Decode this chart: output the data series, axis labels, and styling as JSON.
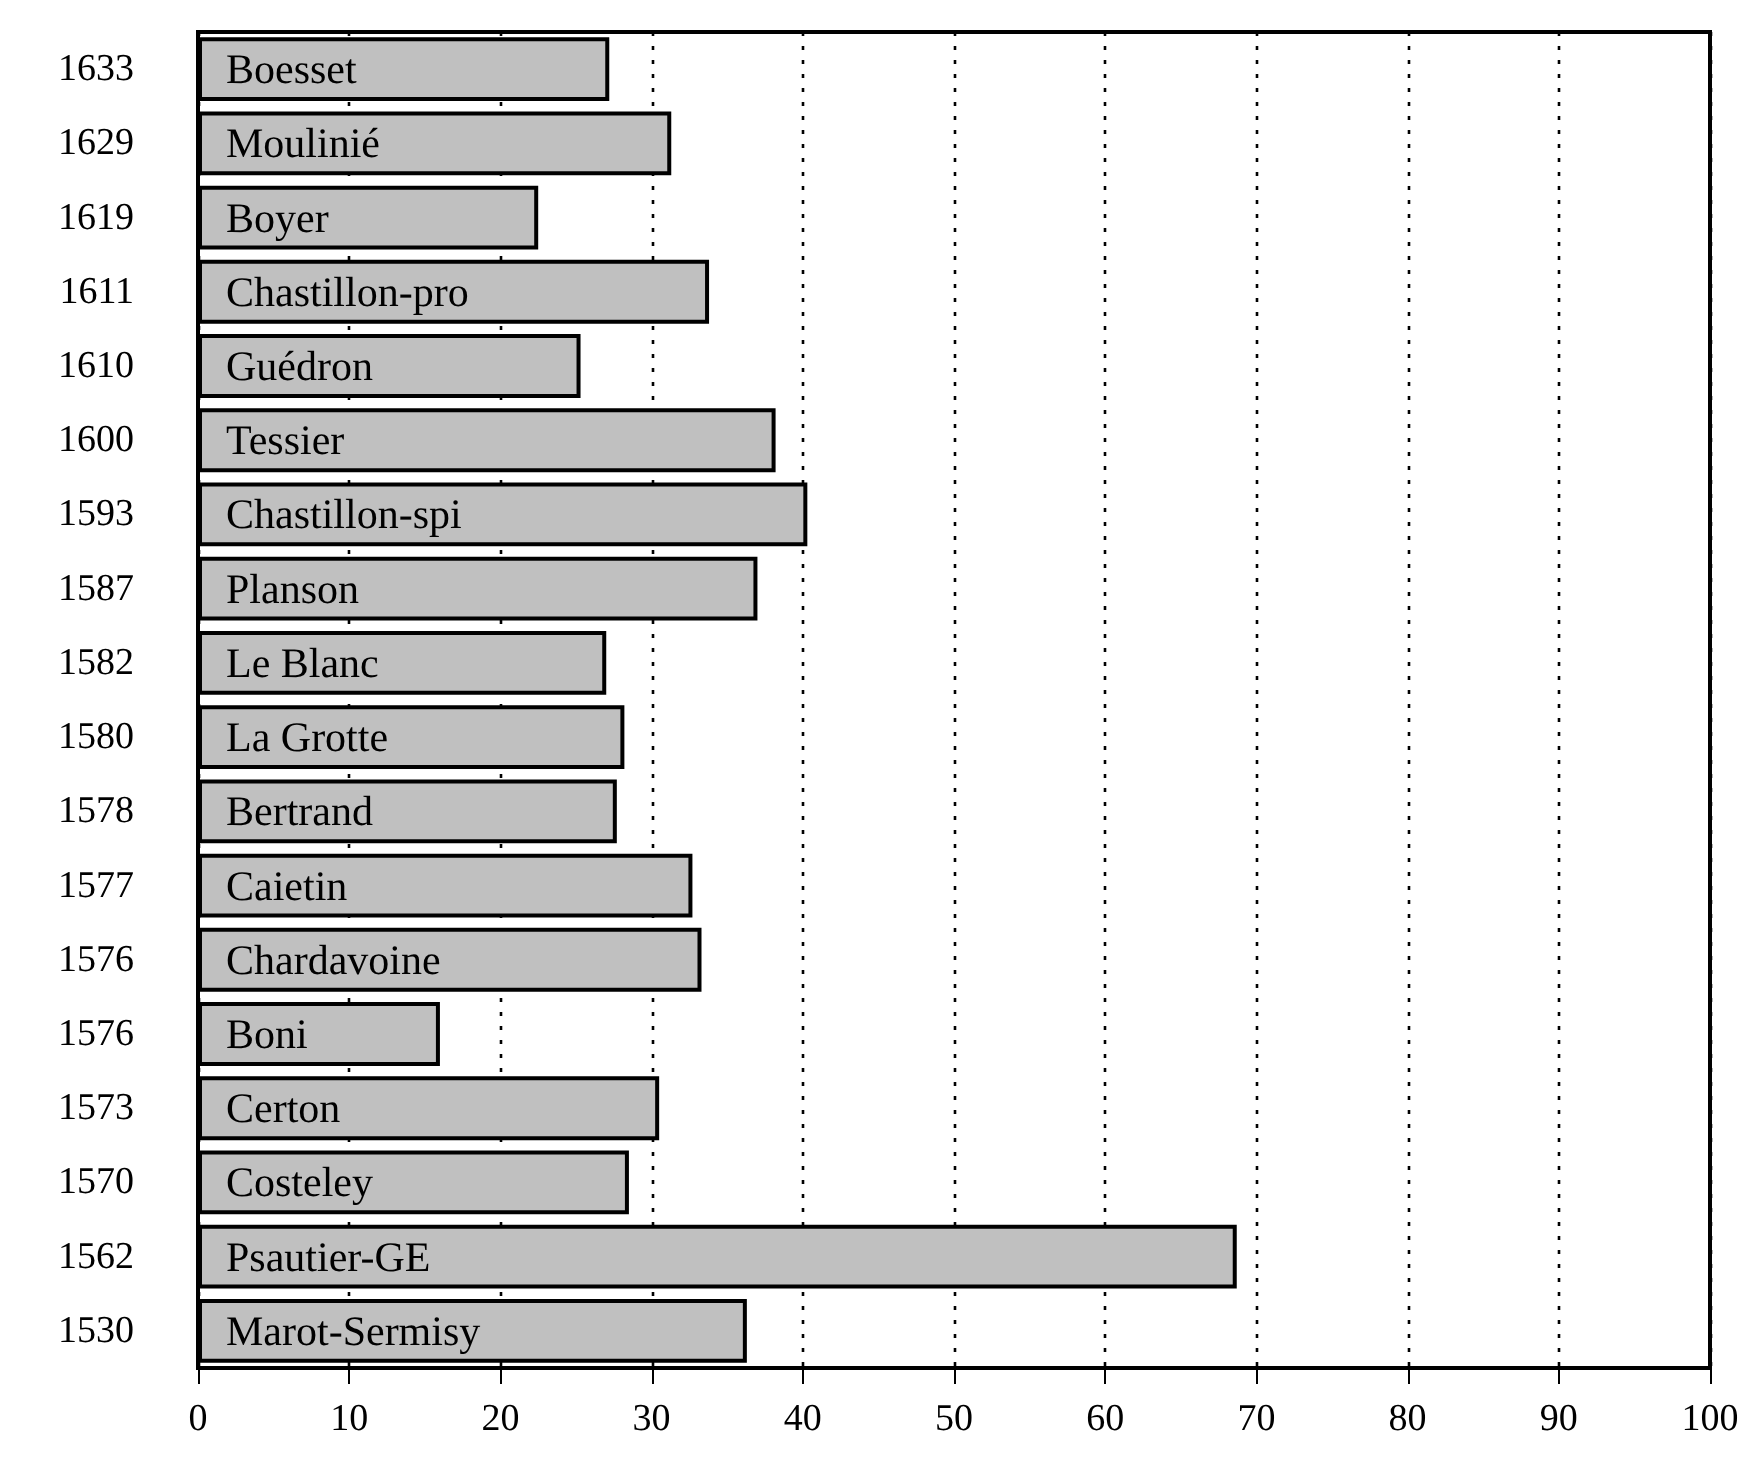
{
  "chart_data": {
    "type": "bar",
    "orientation": "horizontal",
    "categories": [
      "1633",
      "1629",
      "1619",
      "1611",
      "1610",
      "1600",
      "1593",
      "1587",
      "1582",
      "1580",
      "1578",
      "1577",
      "1576",
      "1576",
      "1573",
      "1570",
      "1562",
      "1530"
    ],
    "values": [
      27.2,
      31.3,
      22.5,
      33.8,
      25.3,
      38.2,
      40.3,
      37.0,
      27.0,
      28.2,
      27.7,
      32.7,
      33.3,
      16.0,
      30.5,
      28.5,
      68.7,
      36.3
    ],
    "value_labels": [
      "Boesset",
      "Moulinié",
      "Boyer",
      "Chastillon-pro",
      "Guédron",
      "Tessier",
      "Chastillon-spi",
      "Planson",
      "Le Blanc",
      "La Grotte",
      "Bertrand",
      "Caietin",
      "Chardavoine",
      "Boni",
      "Certon",
      "Costeley",
      "Psautier-GE",
      "Marot-Sermisy"
    ],
    "color": "#c0c0c0",
    "xlim": [
      0,
      100
    ],
    "xticks": [
      0,
      10,
      20,
      30,
      40,
      50,
      60,
      70,
      80,
      90,
      100
    ],
    "grid": "x"
  }
}
